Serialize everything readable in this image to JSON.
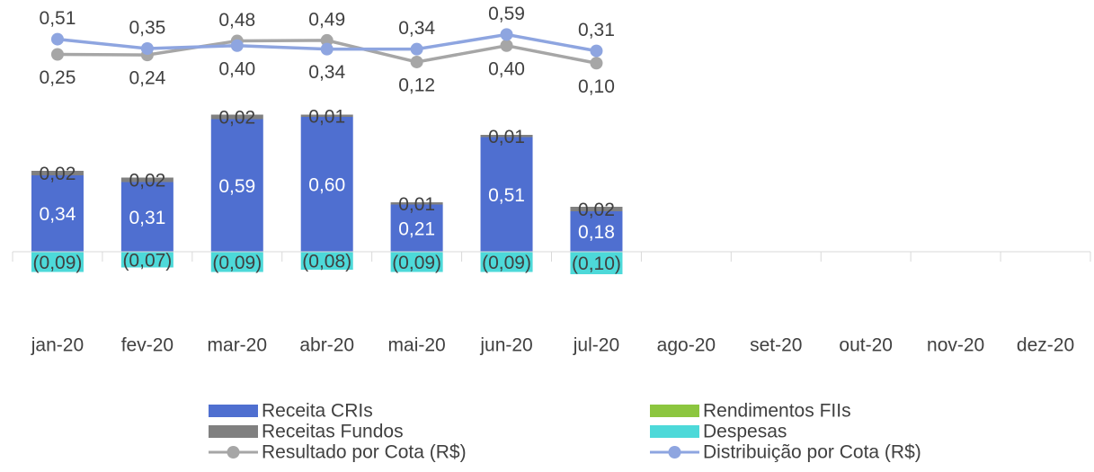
{
  "chart_data": {
    "type": "bar",
    "categories": [
      "jan-20",
      "fev-20",
      "mar-20",
      "abr-20",
      "mai-20",
      "jun-20",
      "jul-20",
      "ago-20",
      "set-20",
      "out-20",
      "nov-20",
      "dez-20"
    ],
    "ylim": [
      -0.28,
      1.12
    ],
    "y2lim": [
      -4.2,
      1.18
    ],
    "series": [
      {
        "name": "Receita CRIs",
        "type": "bar",
        "color": "#4f6fd0",
        "values": [
          0.34,
          0.31,
          0.59,
          0.6,
          0.21,
          0.51,
          0.18,
          null,
          null,
          null,
          null,
          null
        ],
        "value_labels": [
          "0,34",
          "0,31",
          "0,59",
          "0,60",
          "0,21",
          "0,51",
          "0,18",
          null,
          null,
          null,
          null,
          null
        ]
      },
      {
        "name": "Rendimentos FIIs",
        "type": "bar",
        "color": "#8cc63f",
        "values": [
          null,
          null,
          null,
          null,
          null,
          null,
          null,
          null,
          null,
          null,
          null,
          null
        ]
      },
      {
        "name": "Receitas Fundos",
        "type": "bar",
        "color": "#808080",
        "values": [
          0.02,
          0.02,
          0.02,
          0.01,
          0.01,
          0.01,
          0.02,
          null,
          null,
          null,
          null,
          null
        ],
        "value_labels": [
          "0,02",
          "0,02",
          "0,02",
          "0,01",
          "0,01",
          "0,01",
          "0,02",
          null,
          null,
          null,
          null,
          null
        ]
      },
      {
        "name": "Despesas",
        "type": "bar",
        "color": "#4dd9d9",
        "values": [
          -0.09,
          -0.07,
          -0.09,
          -0.08,
          -0.09,
          -0.09,
          -0.1,
          null,
          null,
          null,
          null,
          null
        ],
        "value_labels": [
          "(0,09)",
          "(0,07)",
          "(0,09)",
          "(0,08)",
          "(0,09)",
          "(0,09)",
          "(0,10)",
          null,
          null,
          null,
          null,
          null
        ]
      },
      {
        "name": "Resultado por Cota (R$)",
        "type": "line",
        "axis": "y2",
        "color": "#a6a6a6",
        "values": [
          0.25,
          0.24,
          0.48,
          0.49,
          0.12,
          0.4,
          0.1,
          null,
          null,
          null,
          null,
          null
        ],
        "value_labels": [
          "0,25",
          "0,24",
          "0,48",
          "0,49",
          "0,12",
          "0,40",
          "0,10",
          null,
          null,
          null,
          null,
          null
        ]
      },
      {
        "name": "Distribuição por Cota (R$)",
        "type": "line",
        "axis": "y2",
        "color": "#8ea5e0",
        "values": [
          0.51,
          0.35,
          0.4,
          0.34,
          0.34,
          0.59,
          0.31,
          null,
          null,
          null,
          null,
          null
        ],
        "value_labels": [
          "0,51",
          "0,35",
          "0,40",
          "0,34",
          "0,34",
          "0,59",
          "0,31",
          null,
          null,
          null,
          null,
          null
        ]
      }
    ]
  }
}
